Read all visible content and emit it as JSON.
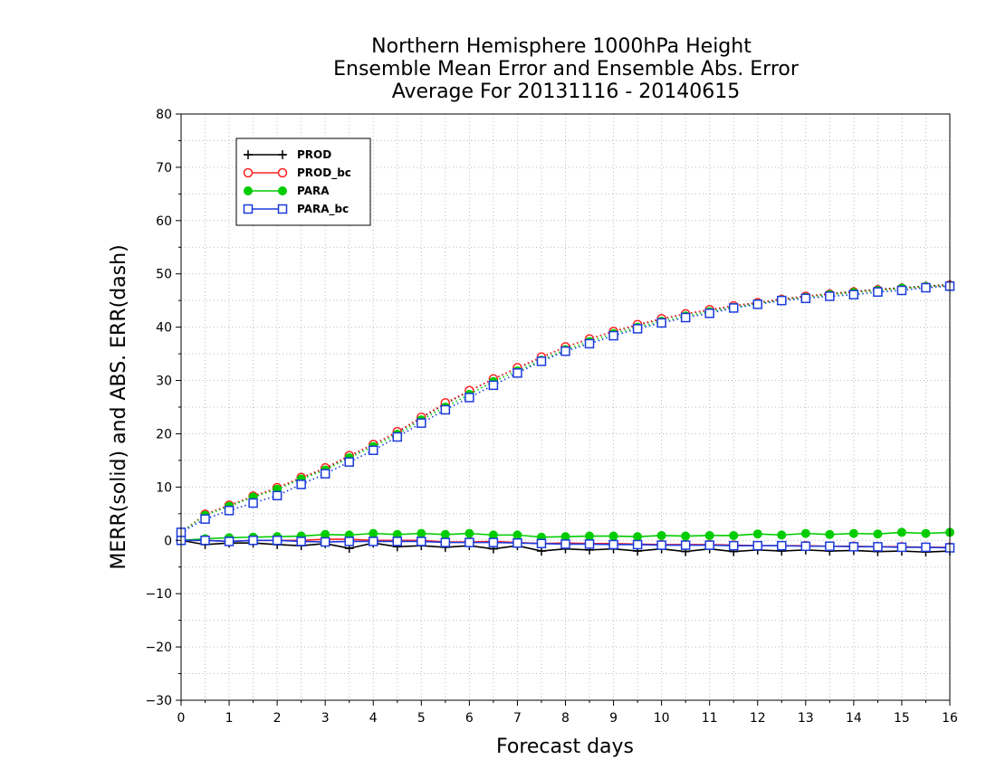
{
  "chart_data": {
    "type": "line",
    "title": [
      "Northern Hemisphere 1000hPa Height",
      "Ensemble Mean Error and Ensemble Abs. Error",
      "Average For 20131116 - 20140615"
    ],
    "xlabel": "Forecast days",
    "ylabel": "MERR(solid) and ABS. ERR(dash)",
    "xlim": [
      0,
      16
    ],
    "ylim": [
      -30,
      80
    ],
    "xticks": [
      "0",
      "1",
      "2",
      "3",
      "4",
      "5",
      "6",
      "7",
      "8",
      "9",
      "10",
      "11",
      "12",
      "13",
      "14",
      "15",
      "16"
    ],
    "yticks": [
      "80",
      "70",
      "60",
      "50",
      "40",
      "30",
      "20",
      "10",
      "0",
      "−10",
      "−20",
      "−30"
    ],
    "grid": true,
    "legend_position": "top-left",
    "x": [
      0,
      0.5,
      1,
      1.5,
      2,
      2.5,
      3,
      3.5,
      4,
      4.5,
      5,
      5.5,
      6,
      6.5,
      7,
      7.5,
      8,
      8.5,
      9,
      9.5,
      10,
      10.5,
      11,
      11.5,
      12,
      12.5,
      13,
      13.5,
      14,
      14.5,
      15,
      15.5,
      16
    ],
    "series": [
      {
        "name": "PROD",
        "color": "#000000",
        "marker": "plus",
        "merr": [
          0,
          -0.8,
          -0.5,
          -0.5,
          -0.8,
          -1,
          -0.6,
          -1.5,
          -0.5,
          -1.2,
          -1,
          -1.3,
          -1,
          -1.6,
          -1,
          -2,
          -1.6,
          -1.8,
          -1.6,
          -2,
          -1.6,
          -2.1,
          -1.6,
          -2.1,
          -1.8,
          -2,
          -1.8,
          -2,
          -1.9,
          -2.1,
          -2,
          -2.2,
          -2
        ],
        "abs": [
          1.5,
          4.8,
          6.5,
          8.3,
          9.8,
          11.7,
          13.5,
          15.8,
          18,
          20.3,
          23,
          25.6,
          28,
          30.3,
          32.3,
          34.3,
          36.3,
          37.8,
          39.2,
          40.4,
          41.5,
          42.5,
          43.2,
          44,
          44.6,
          45.3,
          45.8,
          46.3,
          46.7,
          47.1,
          47.4,
          47.7,
          48
        ]
      },
      {
        "name": "PROD_bc",
        "color": "#ff2020",
        "marker": "circle-open",
        "merr": [
          0,
          0,
          -0.2,
          0,
          0,
          0,
          0.2,
          0.2,
          0,
          0,
          0,
          -0.3,
          -0.3,
          -0.2,
          -0.4,
          -0.6,
          -0.5,
          -0.6,
          -0.6,
          -0.7,
          -0.8,
          -0.8,
          -0.8,
          -0.9,
          -1,
          -1,
          -1,
          -1.1,
          -1.1,
          -1.2,
          -1.2,
          -1.3,
          -1.3
        ],
        "abs": [
          1.5,
          4.9,
          6.6,
          8.3,
          9.9,
          11.8,
          13.6,
          15.9,
          18,
          20.4,
          23.1,
          25.8,
          28.1,
          30.3,
          32.4,
          34.4,
          36.3,
          37.8,
          39.2,
          40.5,
          41.6,
          42.5,
          43.3,
          44,
          44.6,
          45.2,
          45.8,
          46.2,
          46.6,
          47,
          47.3,
          47.6,
          47.9
        ]
      },
      {
        "name": "PARA",
        "color": "#00cc00",
        "marker": "circle-filled",
        "merr": [
          0,
          0.3,
          0.5,
          0.6,
          0.7,
          0.8,
          1.1,
          1,
          1.3,
          1.1,
          1.3,
          1.1,
          1.3,
          1,
          1,
          0.6,
          0.7,
          0.8,
          0.8,
          0.7,
          0.9,
          0.8,
          0.9,
          0.9,
          1.2,
          1,
          1.3,
          1.1,
          1.3,
          1.2,
          1.5,
          1.3,
          1.5
        ],
        "abs": [
          1.5,
          4.7,
          6.4,
          8.1,
          9.6,
          11.5,
          13.2,
          15.5,
          17.6,
          19.9,
          22.6,
          25,
          27.4,
          29.8,
          31.8,
          33.8,
          35.8,
          37.3,
          38.8,
          40,
          41.1,
          42.1,
          42.9,
          43.7,
          44.4,
          45.1,
          45.6,
          46.1,
          46.5,
          46.9,
          47.3,
          47.6,
          47.8
        ]
      },
      {
        "name": "PARA_bc",
        "color": "#1a3adc",
        "marker": "square-open",
        "merr": [
          0,
          0,
          -0.2,
          0,
          0,
          -0.2,
          -0.3,
          -0.2,
          -0.2,
          -0.2,
          -0.2,
          -0.4,
          -0.4,
          -0.4,
          -0.5,
          -0.6,
          -0.7,
          -0.7,
          -0.8,
          -0.8,
          -0.9,
          -0.9,
          -0.9,
          -1,
          -1,
          -1,
          -1.1,
          -1.1,
          -1.2,
          -1.2,
          -1.3,
          -1.3,
          -1.4
        ],
        "abs": [
          1.5,
          4,
          5.6,
          7,
          8.4,
          10.5,
          12.5,
          14.7,
          16.9,
          19.4,
          22,
          24.5,
          26.8,
          29.1,
          31.4,
          33.6,
          35.5,
          36.9,
          38.4,
          39.7,
          40.8,
          41.8,
          42.6,
          43.6,
          44.3,
          45,
          45.4,
          45.8,
          46.1,
          46.6,
          46.9,
          47.4,
          47.7
        ]
      }
    ]
  }
}
